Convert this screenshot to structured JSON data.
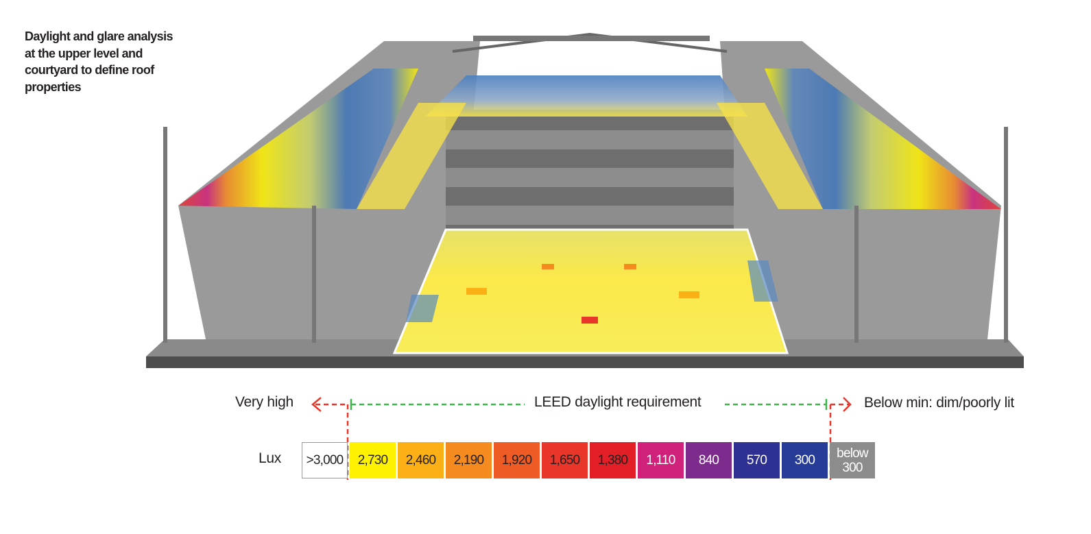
{
  "caption": "Daylight and glare analysis at the upper level and courtyard to define roof properties",
  "legend": {
    "left_label": "Very high",
    "center_label": "LEED daylight requirement",
    "right_label": "Below min: dim/poorly lit",
    "unit_label": "Lux",
    "scale": [
      {
        "label": ">3,000",
        "color": "#ffffff",
        "text_color": "#231f20"
      },
      {
        "label": "2,730",
        "color": "#fff200",
        "text_color": "#231f20"
      },
      {
        "label": "2,460",
        "color": "#fbb016",
        "text_color": "#231f20"
      },
      {
        "label": "2,190",
        "color": "#f58a1f",
        "text_color": "#231f20"
      },
      {
        "label": "1,920",
        "color": "#ef5b24",
        "text_color": "#231f20"
      },
      {
        "label": "1,650",
        "color": "#e8362a",
        "text_color": "#231f20"
      },
      {
        "label": "1,380",
        "color": "#e21f26",
        "text_color": "#231f20"
      },
      {
        "label": "1,110",
        "color": "#d0217b",
        "text_color": "#ffffff"
      },
      {
        "label": "840",
        "color": "#7d2c8d",
        "text_color": "#ffffff"
      },
      {
        "label": "570",
        "color": "#2e3192",
        "text_color": "#ffffff"
      },
      {
        "label": "300",
        "color": "#263c96",
        "text_color": "#ffffff"
      },
      {
        "label": "below 300",
        "color": "#8c8c8c",
        "text_color": "#ffffff"
      }
    ]
  }
}
